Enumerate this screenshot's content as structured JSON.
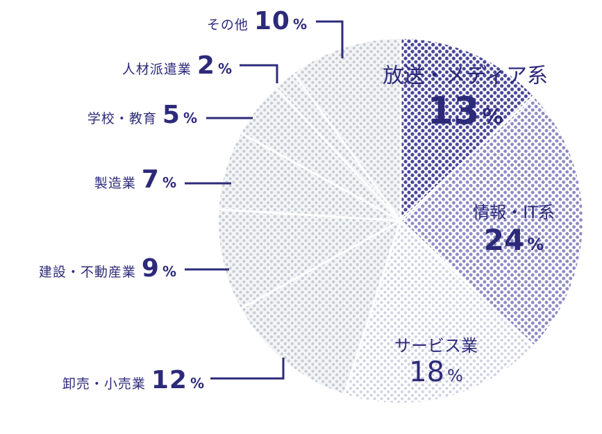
{
  "chart_data": {
    "type": "pie",
    "slices": [
      {
        "label": "放送・メディア系",
        "value": 13,
        "value_text": "13",
        "unit": "%",
        "color": "#4a4799"
      },
      {
        "label": "情報・IT系",
        "value": 24,
        "value_text": "24",
        "unit": "%",
        "color": "#8c89c4"
      },
      {
        "label": "サービス業",
        "value": 18,
        "value_text": "18",
        "unit": "%",
        "color": "#cfd2e2"
      },
      {
        "label": "卸売・小売業",
        "value": 12,
        "value_text": "12",
        "unit": "%",
        "color": "#c6ccd2"
      },
      {
        "label": "建設・不動産業",
        "value": 9,
        "value_text": "9",
        "unit": "%",
        "color": "#c6ccd2"
      },
      {
        "label": "製造業",
        "value": 7,
        "value_text": "7",
        "unit": "%",
        "color": "#c6ccd2"
      },
      {
        "label": "学校・教育",
        "value": 5,
        "value_text": "5",
        "unit": "%",
        "color": "#c6ccd2"
      },
      {
        "label": "人材派遣業",
        "value": 2,
        "value_text": "2",
        "unit": "%",
        "color": "#c6ccd2"
      },
      {
        "label": "その他",
        "value": 10,
        "value_text": "10",
        "unit": "%",
        "color": "#c6ccd2"
      }
    ],
    "colors": {
      "text": "#2d2a7a",
      "leader_line": "#2d2a7a"
    }
  }
}
